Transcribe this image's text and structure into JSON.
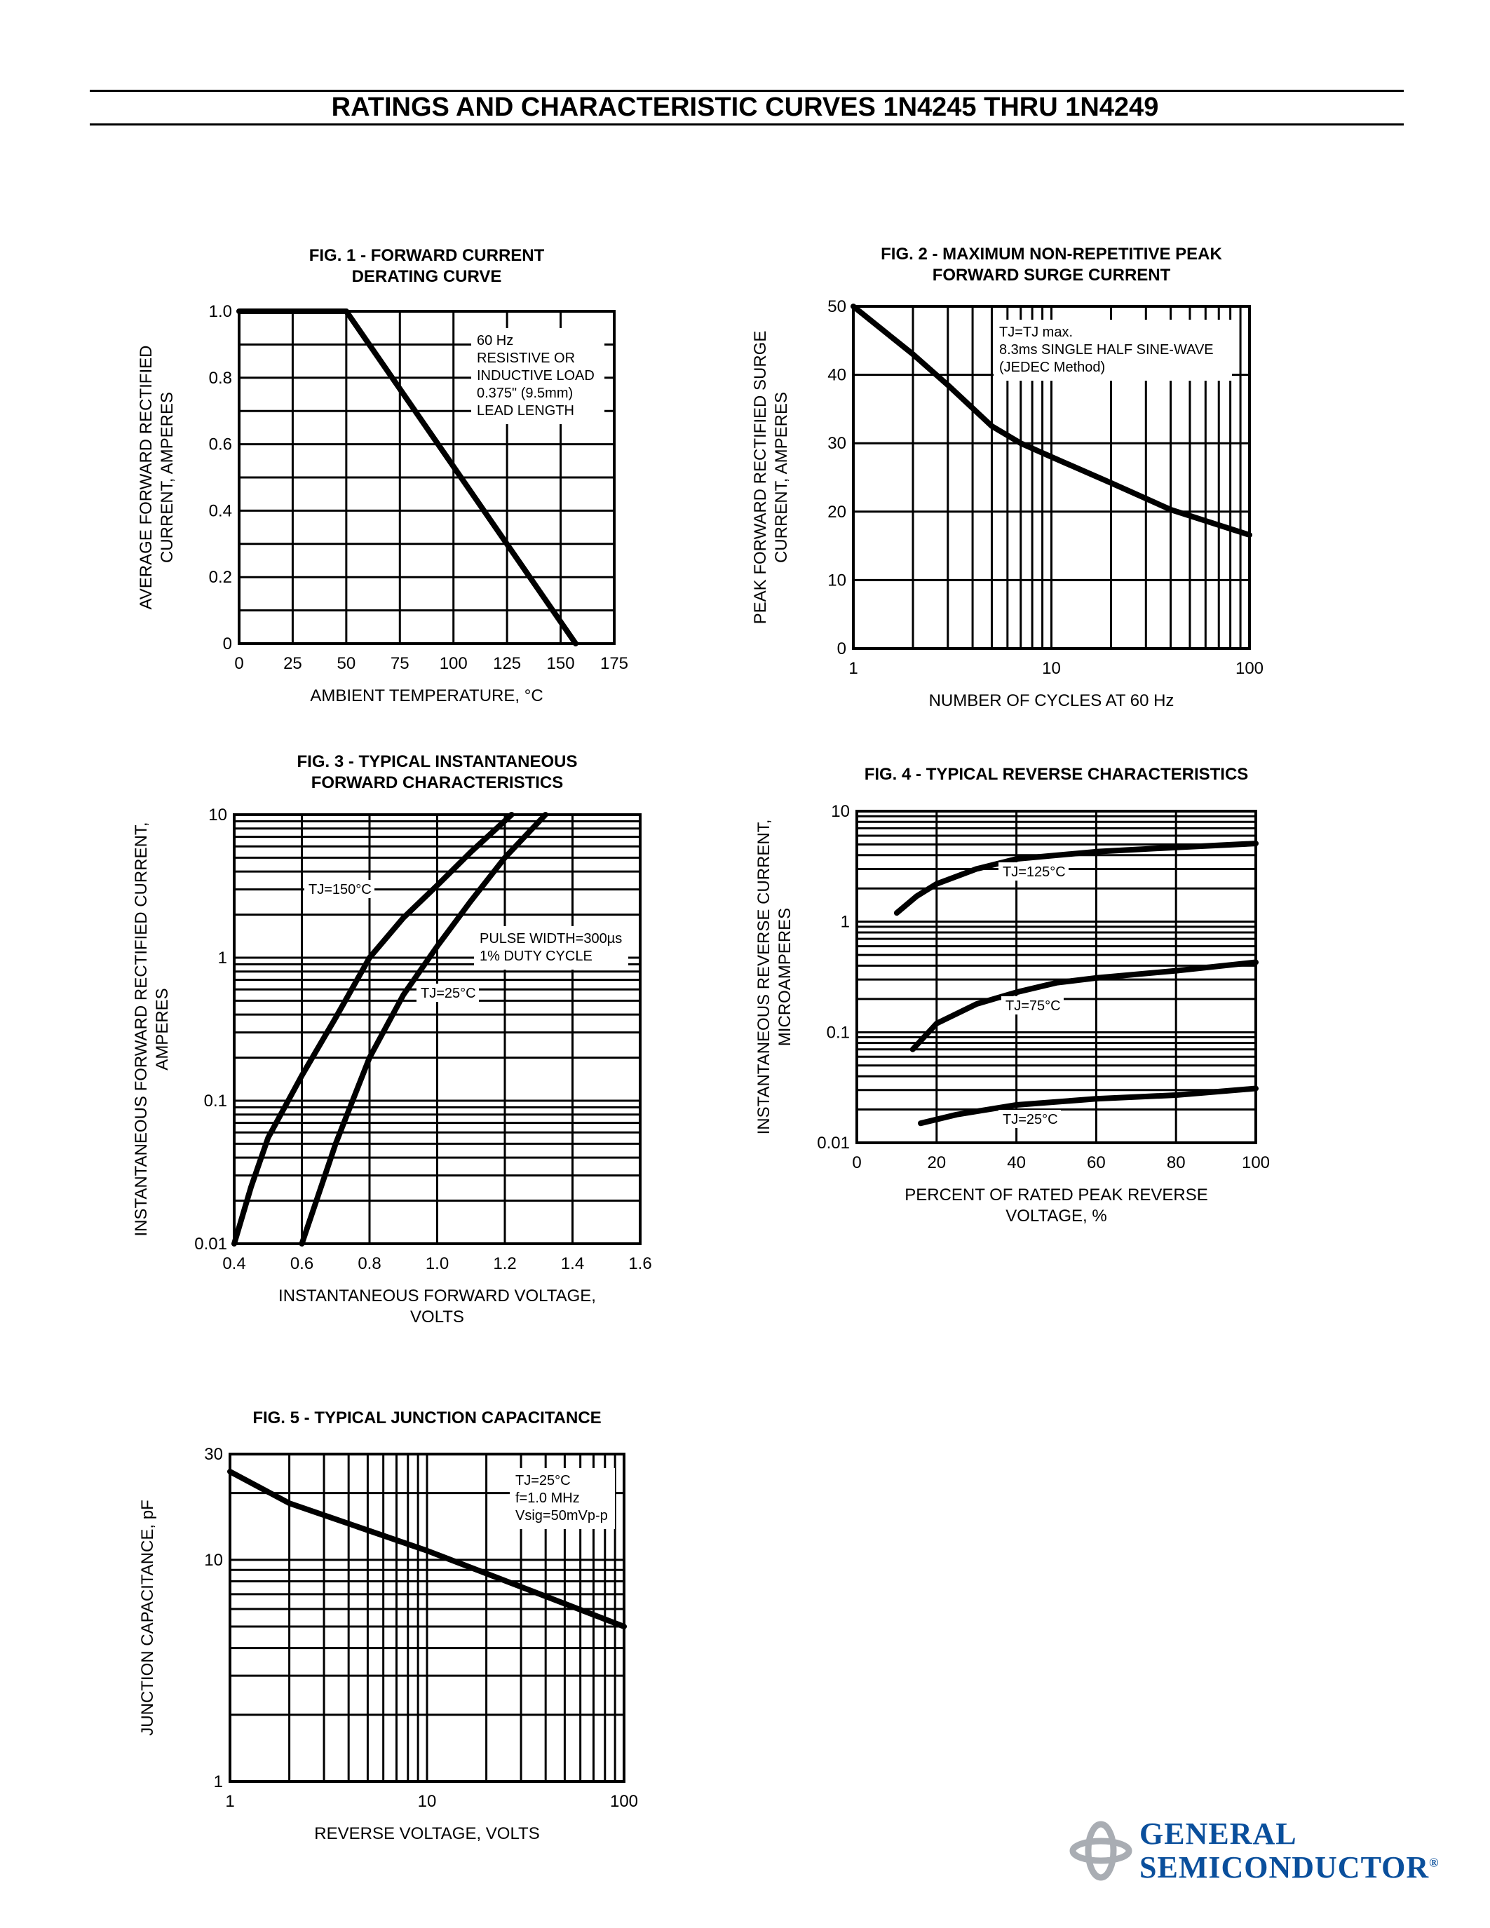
{
  "page_title": "RATINGS AND CHARACTERISTIC CURVES 1N4245 THRU 1N4249",
  "logo": {
    "line1": "GENERAL",
    "line2": "SEMICONDUCTOR",
    "mark": "®",
    "color": "#0a4f9c",
    "icon_color": "#a9adb3"
  },
  "chart_data": [
    {
      "id": "fig1",
      "type": "line",
      "title": [
        "FIG. 1 -  FORWARD CURRENT",
        "DERATING CURVE"
      ],
      "xlabel": [
        "AMBIENT TEMPERATURE, °C"
      ],
      "ylabel": [
        "AVERAGE FORWARD RECTIFIED",
        "CURRENT, AMPERES"
      ],
      "xscale": "linear",
      "yscale": "linear",
      "xlim": [
        0,
        175
      ],
      "ylim": [
        0,
        1.0
      ],
      "xticks": [
        0,
        25,
        50,
        75,
        100,
        125,
        150,
        175
      ],
      "xtick_labels": [
        "0",
        "25",
        "50",
        "75",
        "100",
        "125",
        "150",
        "175"
      ],
      "yticks": [
        0,
        0.2,
        0.4,
        0.6,
        0.8,
        1.0
      ],
      "ytick_labels": [
        "0",
        "0.2",
        "0.4",
        "0.6",
        "0.8",
        "1.0"
      ],
      "xgrid": [
        25,
        50,
        75,
        100,
        125,
        150
      ],
      "ygrid": [
        0.1,
        0.2,
        0.3,
        0.4,
        0.5,
        0.6,
        0.7,
        0.8,
        0.9
      ],
      "grid": true,
      "annotation": [
        "60 Hz",
        "RESISTIVE OR",
        "INDUCTIVE LOAD",
        "0.375\" (9.5mm)",
        "LEAD LENGTH"
      ],
      "series": [
        {
          "x": [
            0,
            50,
            157
          ],
          "y": [
            1.0,
            1.0,
            0
          ]
        }
      ]
    },
    {
      "id": "fig2",
      "type": "line",
      "title": [
        "FIG. 2 - MAXIMUM NON-REPETITIVE PEAK",
        "FORWARD SURGE CURRENT"
      ],
      "xlabel": [
        "NUMBER OF CYCLES AT 60 Hz"
      ],
      "ylabel": [
        "PEAK FORWARD RECTIFIED SURGE",
        "CURRENT, AMPERES"
      ],
      "xscale": "log",
      "yscale": "linear",
      "xlim": [
        1,
        100
      ],
      "ylim": [
        0,
        50
      ],
      "xticks": [
        1,
        10,
        100
      ],
      "xtick_labels": [
        "1",
        "10",
        "100"
      ],
      "yticks": [
        0,
        10,
        20,
        30,
        40,
        50
      ],
      "ytick_labels": [
        "0",
        "10",
        "20",
        "30",
        "40",
        "50"
      ],
      "xgrid": [
        2,
        3,
        4,
        5,
        6,
        7,
        8,
        9,
        10,
        20,
        30,
        40,
        50,
        60,
        70,
        80,
        90
      ],
      "ygrid": [
        10,
        20,
        30,
        40
      ],
      "grid": true,
      "annotation": [
        "TJ=TJ max.",
        "8.3ms SINGLE HALF SINE-WAVE",
        "(JEDEC Method)"
      ],
      "series": [
        {
          "x": [
            1,
            2,
            3,
            5,
            7,
            10,
            20,
            40,
            100
          ],
          "y": [
            50,
            43,
            38.5,
            32.5,
            30,
            28,
            24.2,
            20.3,
            16.6
          ]
        }
      ]
    },
    {
      "id": "fig3",
      "type": "line",
      "title": [
        "FIG. 3 - TYPICAL INSTANTANEOUS",
        "FORWARD CHARACTERISTICS"
      ],
      "xlabel": [
        "INSTANTANEOUS FORWARD VOLTAGE,",
        "VOLTS"
      ],
      "ylabel": [
        "INSTANTANEOUS FORWARD RECTIFIED CURRENT,",
        "AMPERES"
      ],
      "xscale": "linear",
      "yscale": "log",
      "xlim": [
        0.4,
        1.6
      ],
      "ylim": [
        0.01,
        10
      ],
      "xticks": [
        0.4,
        0.6,
        0.8,
        1.0,
        1.2,
        1.4,
        1.6
      ],
      "xtick_labels": [
        "0.4",
        "0.6",
        "0.8",
        "1.0",
        "1.2",
        "1.4",
        "1.6"
      ],
      "yticks": [
        0.01,
        0.1,
        1,
        10
      ],
      "ytick_labels": [
        "0.01",
        "0.1",
        "1",
        "10"
      ],
      "xgrid": [
        0.6,
        0.8,
        1.0,
        1.2,
        1.4
      ],
      "ygrid": "log-decades",
      "grid": true,
      "annotation": [
        "PULSE WIDTH=300µs",
        "1% DUTY CYCLE"
      ],
      "series": [
        {
          "name": "TJ=150°C",
          "x": [
            0.4,
            0.45,
            0.5,
            0.6,
            0.7,
            0.8,
            0.9,
            1.0,
            1.1,
            1.22
          ],
          "y": [
            0.01,
            0.025,
            0.055,
            0.15,
            0.38,
            1.0,
            1.9,
            3.2,
            5.5,
            10
          ]
        },
        {
          "name": "TJ=25°C",
          "x": [
            0.6,
            0.7,
            0.8,
            0.9,
            1.0,
            1.1,
            1.2,
            1.32
          ],
          "y": [
            0.01,
            0.05,
            0.2,
            0.55,
            1.2,
            2.5,
            5,
            10
          ]
        }
      ]
    },
    {
      "id": "fig4",
      "type": "line",
      "title": [
        "FIG. 4 - TYPICAL REVERSE  CHARACTERISTICS"
      ],
      "xlabel": [
        "PERCENT OF RATED PEAK REVERSE",
        "VOLTAGE, %"
      ],
      "ylabel": [
        "INSTANTANEOUS REVERSE CURRENT,",
        "MICROAMPERES"
      ],
      "xscale": "linear",
      "yscale": "log",
      "xlim": [
        0,
        100
      ],
      "ylim": [
        0.01,
        10
      ],
      "xticks": [
        0,
        20,
        40,
        60,
        80,
        100
      ],
      "xtick_labels": [
        "0",
        "20",
        "40",
        "60",
        "80",
        "100"
      ],
      "yticks": [
        0.01,
        0.1,
        1,
        10
      ],
      "ytick_labels": [
        "0.01",
        "0.1",
        "1",
        "10"
      ],
      "xgrid": [
        20,
        40,
        60,
        80
      ],
      "ygrid": "log-decades",
      "grid": true,
      "series": [
        {
          "name": "TJ=125°C",
          "x": [
            10,
            15,
            20,
            30,
            40,
            60,
            80,
            100
          ],
          "y": [
            1.2,
            1.7,
            2.2,
            3.0,
            3.7,
            4.3,
            4.7,
            5.1
          ]
        },
        {
          "name": "TJ=75°C",
          "x": [
            14,
            20,
            30,
            40,
            50,
            60,
            80,
            100
          ],
          "y": [
            0.07,
            0.12,
            0.18,
            0.23,
            0.28,
            0.31,
            0.36,
            0.43
          ]
        },
        {
          "name": "TJ=25°C",
          "x": [
            16,
            25,
            40,
            60,
            80,
            100
          ],
          "y": [
            0.015,
            0.018,
            0.022,
            0.025,
            0.027,
            0.031
          ]
        }
      ]
    },
    {
      "id": "fig5",
      "type": "line",
      "title": [
        "FIG. 5 - TYPICAL JUNCTION CAPACITANCE"
      ],
      "xlabel": [
        "REVERSE VOLTAGE, VOLTS"
      ],
      "ylabel": [
        "JUNCTION CAPACITANCE, pF"
      ],
      "xscale": "log",
      "yscale": "log",
      "xlim": [
        1,
        100
      ],
      "ylim": [
        1,
        30
      ],
      "xticks": [
        1,
        10,
        100
      ],
      "xtick_labels": [
        "1",
        "10",
        "100"
      ],
      "yticks": [
        1,
        10,
        30
      ],
      "ytick_labels": [
        "1",
        "10",
        "30"
      ],
      "xgrid": [
        2,
        3,
        4,
        5,
        6,
        7,
        8,
        9,
        10,
        20,
        30,
        40,
        50,
        60,
        70,
        80,
        90
      ],
      "ygrid": [
        2,
        3,
        4,
        5,
        6,
        7,
        8,
        9,
        10,
        20
      ],
      "grid": true,
      "annotation": [
        "TJ=25°C",
        "f=1.0 MHz",
        "Vsig=50mVp-p"
      ],
      "series": [
        {
          "x": [
            1,
            2,
            10,
            100
          ],
          "y": [
            25,
            18,
            11,
            5
          ]
        }
      ]
    }
  ]
}
